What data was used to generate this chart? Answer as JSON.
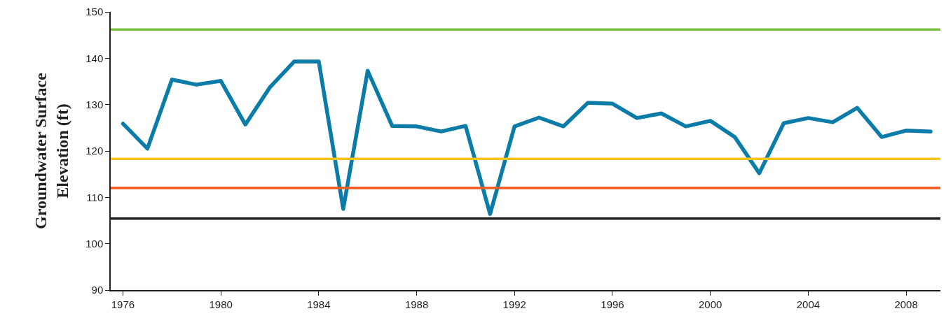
{
  "chart_data": {
    "type": "line",
    "ylabel": "Groundwater Surface\nElevation (ft)",
    "x": [
      1976,
      1977,
      1978,
      1979,
      1980,
      1981,
      1982,
      1983,
      1984,
      1985,
      1986,
      1987,
      1988,
      1989,
      1990,
      1991,
      1992,
      1993,
      1994,
      1995,
      1996,
      1997,
      1998,
      1999,
      2000,
      2001,
      2002,
      2003,
      2004,
      2005,
      2006,
      2007,
      2008,
      2009
    ],
    "series": [
      {
        "color": "#0b7ba8",
        "values": [
          125.9,
          120.5,
          135.4,
          134.3,
          135.1,
          125.7,
          133.7,
          139.3,
          139.3,
          107.5,
          137.3,
          125.4,
          125.3,
          124.2,
          125.4,
          106.4,
          125.3,
          127.2,
          125.3,
          130.4,
          130.2,
          127.1,
          128.1,
          125.3,
          126.5,
          123.0,
          115.2,
          126.0,
          127.1,
          126.2,
          129.3,
          123.0,
          124.4,
          124.2
        ]
      }
    ],
    "xlim": [
      1975.5,
      2009.4
    ],
    "xticks": [
      1976,
      1980,
      1984,
      1988,
      1992,
      1996,
      2000,
      2004,
      2008
    ],
    "ylim": [
      90,
      150
    ],
    "yticks": [
      90,
      100,
      110,
      120,
      130,
      140,
      150
    ],
    "ref_lines": [
      {
        "axis": "y",
        "value": 146.2,
        "color": "#7dc142"
      },
      {
        "axis": "y",
        "value": 118.3,
        "color": "#f8c41c"
      },
      {
        "axis": "y",
        "value": 112.0,
        "color": "#f05a22"
      },
      {
        "axis": "y",
        "value": 105.4,
        "color": "#231f20"
      }
    ],
    "marker": "none",
    "line_style": "solid"
  }
}
